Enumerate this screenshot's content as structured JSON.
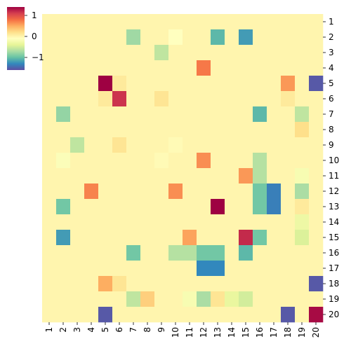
{
  "chart_data": {
    "type": "heatmap",
    "title": "",
    "xlabel": "",
    "ylabel": "",
    "x_categories": [
      "1",
      "2",
      "3",
      "4",
      "5",
      "6",
      "7",
      "8",
      "9",
      "10",
      "11",
      "12",
      "13",
      "14",
      "15",
      "16",
      "17",
      "18",
      "19",
      "20"
    ],
    "y_categories": [
      "1",
      "2",
      "3",
      "4",
      "5",
      "6",
      "7",
      "8",
      "9",
      "10",
      "11",
      "12",
      "13",
      "14",
      "15",
      "16",
      "17",
      "18",
      "19",
      "20"
    ],
    "colormap": "Spectral_r",
    "value_range": [
      -1.6,
      1.4
    ],
    "colorbar_ticks": [
      {
        "value": 1,
        "label": "1"
      },
      {
        "value": 0,
        "label": "0"
      },
      {
        "value": -1,
        "label": "−1"
      }
    ],
    "legend_position": "top-left",
    "values": [
      [
        0,
        0,
        0,
        0,
        0,
        0,
        0,
        0,
        0,
        0,
        0,
        0,
        0,
        0,
        0,
        0,
        0,
        0,
        0,
        0
      ],
      [
        0,
        0,
        0,
        0,
        0,
        0,
        -0.75,
        0,
        0,
        -0.1,
        0,
        0,
        -1.05,
        0,
        -1.2,
        0,
        0,
        0,
        0,
        0
      ],
      [
        0,
        0,
        0,
        0,
        0,
        0,
        0,
        0,
        -0.6,
        0,
        0,
        0,
        0,
        0,
        0,
        0,
        0,
        0,
        0,
        0
      ],
      [
        0,
        0,
        0,
        0,
        0,
        0,
        0,
        0,
        0,
        0,
        0,
        0.75,
        0,
        0,
        0,
        0,
        0,
        0,
        0,
        0
      ],
      [
        0,
        0,
        0,
        0,
        1.4,
        0.1,
        0,
        0,
        0,
        0,
        0,
        0,
        0,
        0,
        0,
        0,
        0,
        0.6,
        0,
        -1.55
      ],
      [
        0,
        0,
        0,
        0,
        0.1,
        1.15,
        0,
        0,
        0.15,
        0,
        0,
        0,
        0,
        0,
        0,
        0,
        0,
        0.1,
        0,
        0
      ],
      [
        0,
        -0.8,
        0,
        0,
        0,
        0,
        0,
        0,
        0,
        0,
        0,
        0,
        0,
        0,
        0,
        -1.05,
        0,
        0,
        -0.6,
        0
      ],
      [
        0,
        0,
        0,
        0,
        0,
        0,
        0,
        0,
        0,
        0,
        0,
        0,
        0,
        0,
        0,
        0,
        0,
        0,
        0.2,
        0
      ],
      [
        0,
        0,
        -0.6,
        0,
        0,
        0.15,
        0,
        0,
        0,
        -0.05,
        0,
        0,
        0,
        0,
        0,
        0,
        0,
        0,
        0,
        0
      ],
      [
        0,
        -0.15,
        0,
        0,
        0,
        0,
        0,
        0,
        -0.05,
        0,
        0,
        0.65,
        0,
        0,
        0,
        -0.65,
        0,
        0,
        0,
        0
      ],
      [
        0,
        0,
        0,
        0,
        0,
        0,
        0,
        0,
        0,
        0,
        0,
        0,
        0,
        0,
        0.6,
        -0.65,
        0,
        0,
        -0.2,
        0
      ],
      [
        0,
        0,
        0,
        0.7,
        0,
        0,
        0,
        0,
        0,
        0.65,
        0,
        0,
        0,
        0,
        0,
        -0.95,
        -1.35,
        0,
        -0.7,
        0
      ],
      [
        0,
        -0.95,
        0,
        0,
        0,
        0,
        0,
        0,
        0,
        0,
        0,
        0,
        1.4,
        0,
        0,
        -0.95,
        -1.35,
        0,
        0.1,
        0
      ],
      [
        0,
        0,
        0,
        0,
        0,
        0,
        0,
        0,
        0,
        0,
        0,
        0,
        0,
        0,
        0,
        0,
        0,
        0,
        -0.3,
        0
      ],
      [
        0,
        -1.2,
        0,
        0,
        0,
        0,
        0,
        0,
        0,
        0,
        0.55,
        0,
        0,
        0,
        1.2,
        -0.95,
        0,
        0,
        -0.45,
        0
      ],
      [
        0,
        0,
        0,
        0,
        0,
        0,
        -0.95,
        0,
        0,
        -0.65,
        -0.65,
        -0.95,
        -0.95,
        0,
        -1.05,
        0,
        0,
        0,
        0,
        0
      ],
      [
        0,
        0,
        0,
        0,
        0,
        0,
        0,
        0,
        0,
        0,
        0,
        -1.3,
        -1.3,
        0,
        0,
        0,
        0,
        0,
        0,
        0
      ],
      [
        0,
        0,
        0,
        0,
        0.5,
        0.15,
        0,
        0,
        0,
        0,
        0,
        0,
        0,
        0,
        0,
        0,
        0,
        0,
        0,
        -1.55
      ],
      [
        0,
        0,
        0,
        0,
        0,
        0,
        -0.6,
        0.3,
        0,
        0,
        -0.2,
        -0.7,
        0.15,
        -0.35,
        -0.5,
        0,
        0,
        0,
        0,
        0
      ],
      [
        0,
        0,
        0,
        0,
        -1.55,
        0,
        0,
        0,
        0,
        0,
        0,
        0,
        0,
        0,
        0,
        0,
        0,
        -1.55,
        0,
        1.35
      ]
    ]
  }
}
